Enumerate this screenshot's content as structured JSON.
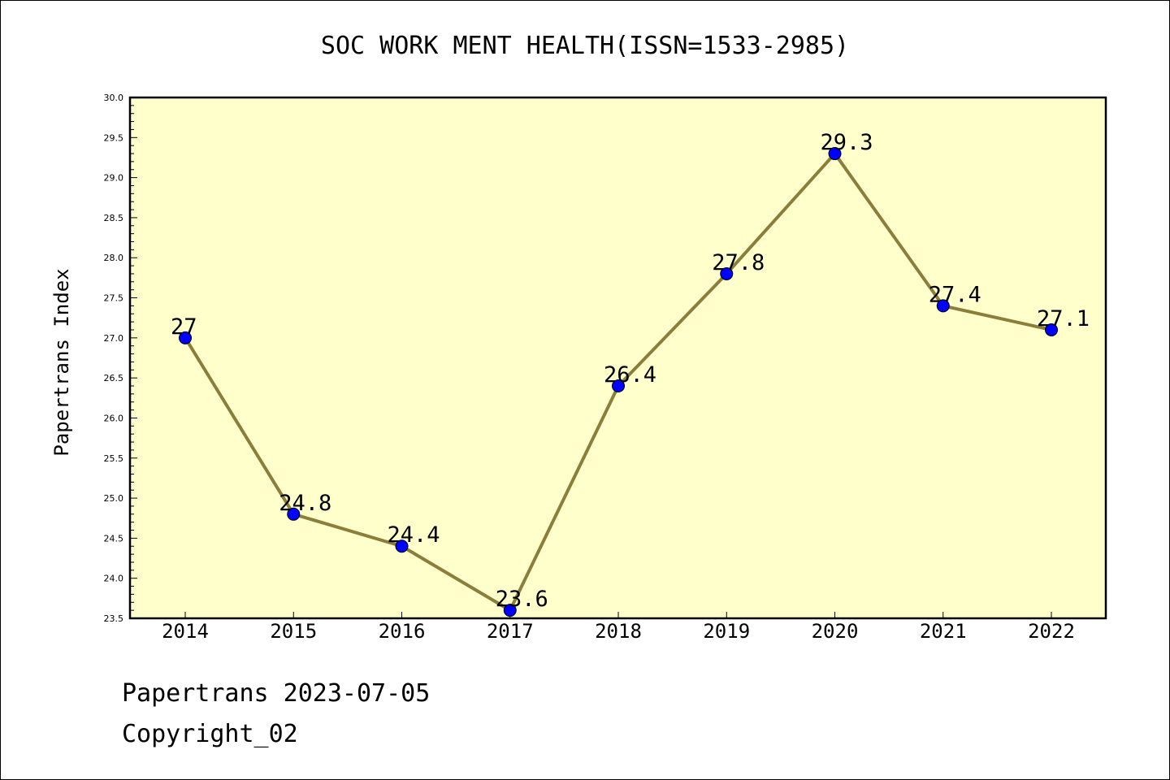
{
  "chart_data": {
    "type": "line",
    "title": "SOC WORK MENT HEALTH(ISSN=1533-2985)",
    "ylabel": "Papertrans Index",
    "xlabel": "",
    "x": [
      "2014",
      "2015",
      "2016",
      "2017",
      "2018",
      "2019",
      "2020",
      "2021",
      "2022"
    ],
    "values": [
      27,
      24.8,
      24.4,
      23.6,
      26.4,
      27.8,
      29.3,
      27.4,
      27.1
    ],
    "data_labels": [
      "27",
      "24.8",
      "24.4",
      "23.6",
      "26.4",
      "27.8",
      "29.3",
      "27.4",
      "27.1"
    ],
    "ylim": [
      23.5,
      30.0
    ],
    "yticks": [
      "23.5",
      "24.0",
      "24.5",
      "25.0",
      "25.5",
      "26.0",
      "26.5",
      "27.0",
      "27.5",
      "28.0",
      "28.5",
      "29.0",
      "29.5",
      "30.0"
    ],
    "grid": false,
    "colors": {
      "plot_background": "#ffffcc",
      "line": "#8b7d3a",
      "marker": "#0000ff"
    }
  },
  "footer": {
    "date_line": "Papertrans 2023-07-05",
    "copyright": "Copyright_02"
  }
}
